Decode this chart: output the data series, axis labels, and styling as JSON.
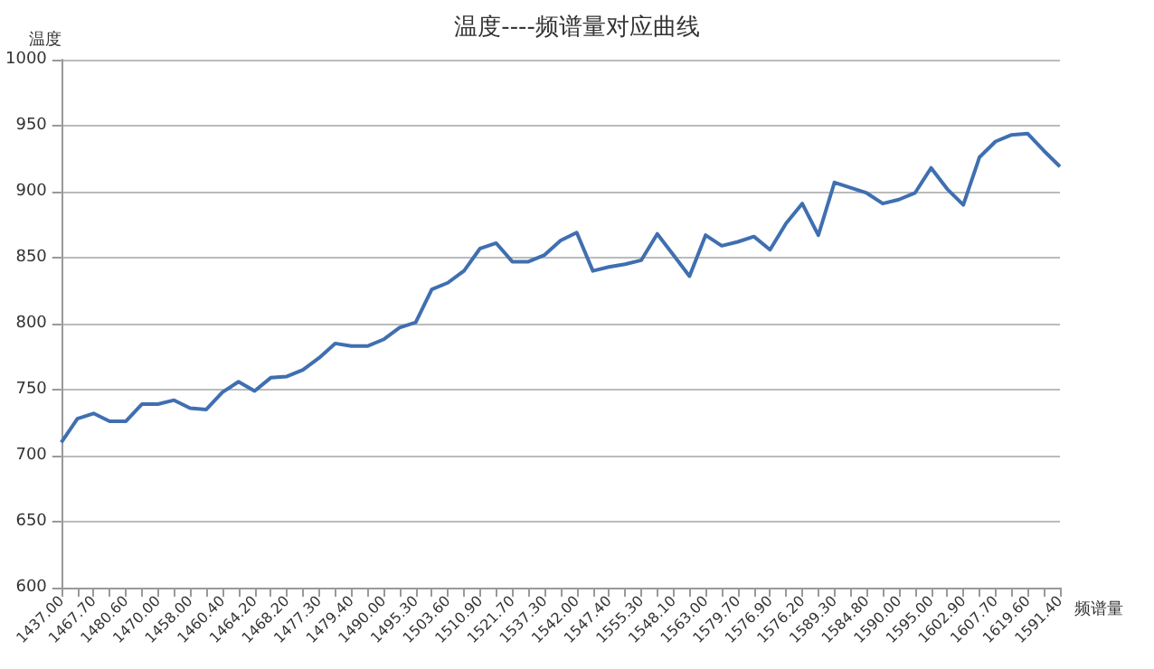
{
  "chart_data": {
    "type": "line",
    "title": "温度----频谱量对应曲线",
    "xlabel": "频谱量",
    "ylabel": "温度",
    "categories": [
      "1437.00",
      null,
      "1467.70",
      null,
      "1480.60",
      null,
      "1470.00",
      null,
      "1458.00",
      null,
      "1460.40",
      null,
      "1464.20",
      null,
      "1468.20",
      null,
      "1477.30",
      null,
      "1479.40",
      null,
      "1490.00",
      null,
      "1495.30",
      null,
      "1503.60",
      null,
      "1510.90",
      null,
      "1521.70",
      null,
      "1537.30",
      null,
      "1542.00",
      null,
      "1547.40",
      null,
      "1555.30",
      null,
      "1548.10",
      null,
      "1563.00",
      null,
      "1579.70",
      null,
      "1576.90",
      null,
      "1576.20",
      null,
      "1589.30",
      null,
      "1584.80",
      null,
      "1590.00",
      null,
      "1595.00",
      null,
      "1602.90",
      null,
      "1607.70",
      null,
      "1619.60",
      null,
      "1591.40"
    ],
    "series": [
      {
        "color": "#3f6fb0",
        "values": [
          710,
          728,
          732,
          726,
          726,
          739,
          739,
          742,
          736,
          735,
          748,
          756,
          749,
          759,
          760,
          765,
          774,
          785,
          783,
          783,
          788,
          797,
          801,
          826,
          831,
          840,
          857,
          861,
          847,
          847,
          852,
          863,
          869,
          840,
          843,
          845,
          848,
          868,
          852,
          836,
          867,
          859,
          862,
          866,
          856,
          876,
          891,
          867,
          907,
          903,
          899,
          891,
          894,
          899,
          918,
          902,
          890,
          926,
          938,
          943,
          944,
          931,
          919
        ]
      }
    ],
    "ylim": [
      600,
      1000
    ],
    "yticks": [
      600,
      650,
      700,
      750,
      800,
      850,
      900,
      950,
      1000
    ],
    "grid": "y",
    "marker": "none",
    "line_style": "solid"
  }
}
